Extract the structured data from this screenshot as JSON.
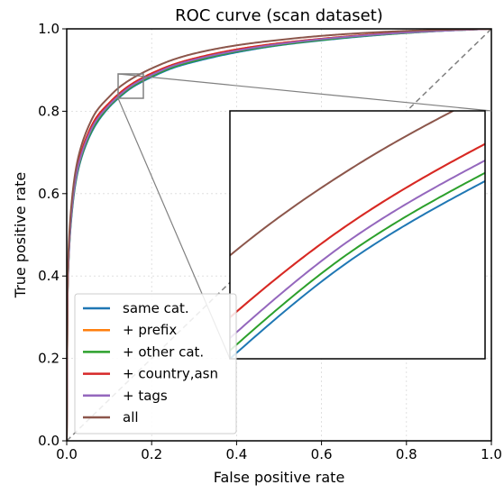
{
  "chart_data": {
    "type": "line",
    "title": "ROC curve (scan dataset)",
    "xlabel": "False positive rate",
    "ylabel": "True positive rate",
    "xlim": [
      0.0,
      1.0
    ],
    "ylim": [
      0.0,
      1.0
    ],
    "xticks": [
      "0.0",
      "0.2",
      "0.4",
      "0.6",
      "0.8",
      "1.0"
    ],
    "yticks": [
      "0.0",
      "0.2",
      "0.4",
      "0.6",
      "0.8",
      "1.0"
    ],
    "grid": true,
    "legend_position": "lower-left",
    "diagonal_reference": true,
    "series": [
      {
        "name": "same cat.",
        "color": "#1f77b4",
        "points": [
          [
            0,
            0
          ],
          [
            0.002,
            0.35
          ],
          [
            0.005,
            0.45
          ],
          [
            0.01,
            0.53
          ],
          [
            0.02,
            0.62
          ],
          [
            0.03,
            0.67
          ],
          [
            0.05,
            0.73
          ],
          [
            0.07,
            0.77
          ],
          [
            0.1,
            0.81
          ],
          [
            0.12,
            0.83
          ],
          [
            0.15,
            0.855
          ],
          [
            0.18,
            0.873
          ],
          [
            0.2,
            0.883
          ],
          [
            0.25,
            0.905
          ],
          [
            0.3,
            0.92
          ],
          [
            0.4,
            0.943
          ],
          [
            0.5,
            0.96
          ],
          [
            0.6,
            0.972
          ],
          [
            0.7,
            0.982
          ],
          [
            0.8,
            0.99
          ],
          [
            0.9,
            0.996
          ],
          [
            1,
            1
          ]
        ]
      },
      {
        "name": "+ prefix",
        "color": "#ff7f0e",
        "points": [
          [
            0,
            0
          ],
          [
            0.002,
            0.36
          ],
          [
            0.005,
            0.46
          ],
          [
            0.01,
            0.545
          ],
          [
            0.02,
            0.635
          ],
          [
            0.03,
            0.685
          ],
          [
            0.05,
            0.745
          ],
          [
            0.07,
            0.785
          ],
          [
            0.1,
            0.82
          ],
          [
            0.12,
            0.84
          ],
          [
            0.15,
            0.864
          ],
          [
            0.18,
            0.882
          ],
          [
            0.2,
            0.892
          ],
          [
            0.25,
            0.913
          ],
          [
            0.3,
            0.928
          ],
          [
            0.4,
            0.95
          ],
          [
            0.5,
            0.965
          ],
          [
            0.6,
            0.976
          ],
          [
            0.7,
            0.985
          ],
          [
            0.8,
            0.992
          ],
          [
            0.9,
            0.997
          ],
          [
            1,
            1
          ]
        ]
      },
      {
        "name": "+ other cat.",
        "color": "#2ca02c",
        "points": [
          [
            0,
            0
          ],
          [
            0.002,
            0.35
          ],
          [
            0.005,
            0.452
          ],
          [
            0.01,
            0.533
          ],
          [
            0.02,
            0.623
          ],
          [
            0.03,
            0.673
          ],
          [
            0.05,
            0.733
          ],
          [
            0.07,
            0.773
          ],
          [
            0.1,
            0.812
          ],
          [
            0.12,
            0.832
          ],
          [
            0.15,
            0.857
          ],
          [
            0.18,
            0.875
          ],
          [
            0.2,
            0.885
          ],
          [
            0.25,
            0.907
          ],
          [
            0.3,
            0.922
          ],
          [
            0.4,
            0.945
          ],
          [
            0.5,
            0.961
          ],
          [
            0.6,
            0.973
          ],
          [
            0.7,
            0.983
          ],
          [
            0.8,
            0.99
          ],
          [
            0.9,
            0.996
          ],
          [
            1,
            1
          ]
        ]
      },
      {
        "name": "+ country,asn",
        "color": "#d62728",
        "points": [
          [
            0,
            0
          ],
          [
            0.002,
            0.36
          ],
          [
            0.005,
            0.46
          ],
          [
            0.01,
            0.545
          ],
          [
            0.02,
            0.635
          ],
          [
            0.03,
            0.685
          ],
          [
            0.05,
            0.745
          ],
          [
            0.07,
            0.785
          ],
          [
            0.1,
            0.82
          ],
          [
            0.12,
            0.84
          ],
          [
            0.15,
            0.864
          ],
          [
            0.18,
            0.882
          ],
          [
            0.2,
            0.892
          ],
          [
            0.25,
            0.913
          ],
          [
            0.3,
            0.928
          ],
          [
            0.4,
            0.95
          ],
          [
            0.5,
            0.965
          ],
          [
            0.6,
            0.976
          ],
          [
            0.7,
            0.985
          ],
          [
            0.8,
            0.992
          ],
          [
            0.9,
            0.997
          ],
          [
            1,
            1
          ]
        ]
      },
      {
        "name": "+ tags",
        "color": "#9467bd",
        "points": [
          [
            0,
            0
          ],
          [
            0.002,
            0.355
          ],
          [
            0.005,
            0.455
          ],
          [
            0.01,
            0.538
          ],
          [
            0.02,
            0.628
          ],
          [
            0.03,
            0.678
          ],
          [
            0.05,
            0.738
          ],
          [
            0.07,
            0.778
          ],
          [
            0.1,
            0.815
          ],
          [
            0.12,
            0.835
          ],
          [
            0.15,
            0.86
          ],
          [
            0.18,
            0.878
          ],
          [
            0.2,
            0.888
          ],
          [
            0.25,
            0.91
          ],
          [
            0.3,
            0.925
          ],
          [
            0.4,
            0.947
          ],
          [
            0.5,
            0.963
          ],
          [
            0.6,
            0.975
          ],
          [
            0.7,
            0.984
          ],
          [
            0.8,
            0.991
          ],
          [
            0.9,
            0.996
          ],
          [
            1,
            1
          ]
        ]
      },
      {
        "name": "all",
        "color": "#8c564b",
        "points": [
          [
            0,
            0
          ],
          [
            0.002,
            0.38
          ],
          [
            0.005,
            0.48
          ],
          [
            0.01,
            0.56
          ],
          [
            0.02,
            0.65
          ],
          [
            0.03,
            0.7
          ],
          [
            0.05,
            0.76
          ],
          [
            0.07,
            0.8
          ],
          [
            0.1,
            0.835
          ],
          [
            0.12,
            0.855
          ],
          [
            0.15,
            0.877
          ],
          [
            0.18,
            0.894
          ],
          [
            0.2,
            0.904
          ],
          [
            0.25,
            0.925
          ],
          [
            0.3,
            0.94
          ],
          [
            0.4,
            0.96
          ],
          [
            0.5,
            0.973
          ],
          [
            0.6,
            0.983
          ],
          [
            0.7,
            0.99
          ],
          [
            0.8,
            0.995
          ],
          [
            0.9,
            0.998
          ],
          [
            1,
            1
          ]
        ]
      }
    ],
    "inset": {
      "xlim": [
        0.12,
        0.18
      ],
      "ylim": [
        0.83,
        0.89
      ],
      "connector_color": "#808080"
    }
  }
}
